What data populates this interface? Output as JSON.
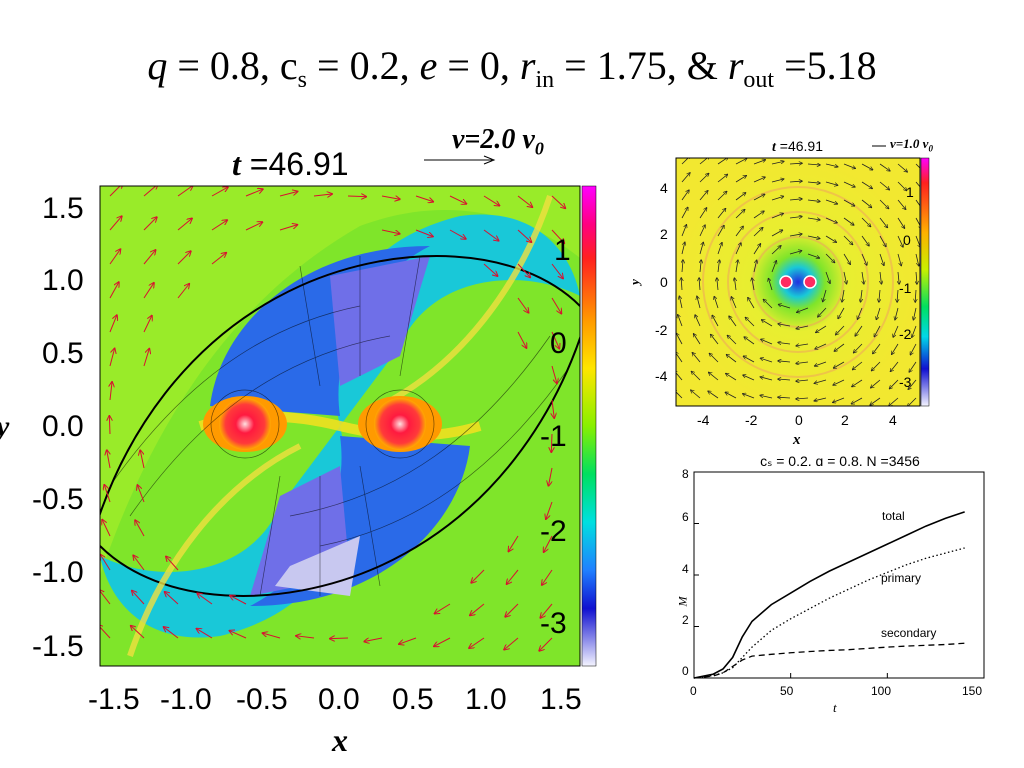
{
  "title": {
    "q_sym": "q",
    "q_val": " = 0.8, c",
    "cs_sub": "s",
    "cs_val": " = 0.2, ",
    "e_sym": "e",
    "e_val": " = 0, ",
    "rin_sym": "r",
    "rin_sub": "in",
    "rin_val": " = 1.75, & ",
    "rout_sym": "r",
    "rout_sub": "out",
    "rout_val": " =5.18"
  },
  "main_panel": {
    "time_prefix": "t",
    "time_value": " =46.91",
    "velocity_label": "v=2.0 v",
    "velocity_sub": "0",
    "x_ticks": [
      "-1.5",
      "-1.0",
      "-0.5",
      "0.0",
      "0.5",
      "1.0",
      "1.5"
    ],
    "y_ticks": [
      "1.5",
      "1.0",
      "0.5",
      "0.0",
      "-0.5",
      "-1.0",
      "-1.5"
    ],
    "colorbar_ticks": [
      "1",
      "0",
      "-1",
      "-2",
      "-3"
    ],
    "xlabel": "x",
    "ylabel": "y"
  },
  "inset_panel": {
    "time_prefix": "t",
    "time_value": " =46.91",
    "velocity_label": "v=1.0 v",
    "velocity_sub": "0",
    "x_ticks": [
      "-4",
      "-2",
      "0",
      "2",
      "4"
    ],
    "y_ticks": [
      "4",
      "2",
      "0",
      "-2",
      "-4"
    ],
    "colorbar_ticks": [
      "1",
      "0",
      "-1",
      "-2",
      "-3"
    ],
    "xlabel": "x",
    "ylabel": "y"
  },
  "chart_data": {
    "type": "line",
    "title": "cₛ = 0.2, q = 0.8, N =3456",
    "xlabel": "t",
    "ylabel": "M",
    "xlim": [
      0,
      150
    ],
    "ylim": [
      0,
      8
    ],
    "x_ticks": [
      "0",
      "50",
      "100",
      "150"
    ],
    "y_ticks": [
      "0",
      "2",
      "4",
      "6",
      "8"
    ],
    "series": [
      {
        "name": "total",
        "style": "solid",
        "x": [
          0,
          10,
          15,
          20,
          25,
          30,
          40,
          50,
          60,
          70,
          80,
          90,
          100,
          110,
          120,
          130,
          140
        ],
        "y": [
          0,
          0.15,
          0.35,
          0.8,
          1.6,
          2.2,
          2.85,
          3.3,
          3.75,
          4.15,
          4.5,
          4.85,
          5.2,
          5.55,
          5.9,
          6.2,
          6.45
        ]
      },
      {
        "name": "primary",
        "style": "dotted",
        "x": [
          0,
          10,
          15,
          20,
          25,
          30,
          40,
          50,
          60,
          70,
          80,
          90,
          100,
          110,
          120,
          130,
          140
        ],
        "y": [
          0,
          0.1,
          0.2,
          0.4,
          0.8,
          1.2,
          1.85,
          2.3,
          2.7,
          3.1,
          3.45,
          3.8,
          4.1,
          4.4,
          4.65,
          4.85,
          5.05
        ]
      },
      {
        "name": "secondary",
        "style": "dashed",
        "x": [
          0,
          10,
          15,
          20,
          25,
          30,
          40,
          50,
          60,
          70,
          80,
          90,
          100,
          110,
          120,
          130,
          140
        ],
        "y": [
          0,
          0.08,
          0.2,
          0.45,
          0.7,
          0.85,
          0.92,
          0.98,
          1.03,
          1.07,
          1.1,
          1.15,
          1.2,
          1.24,
          1.27,
          1.3,
          1.35
        ]
      }
    ]
  }
}
